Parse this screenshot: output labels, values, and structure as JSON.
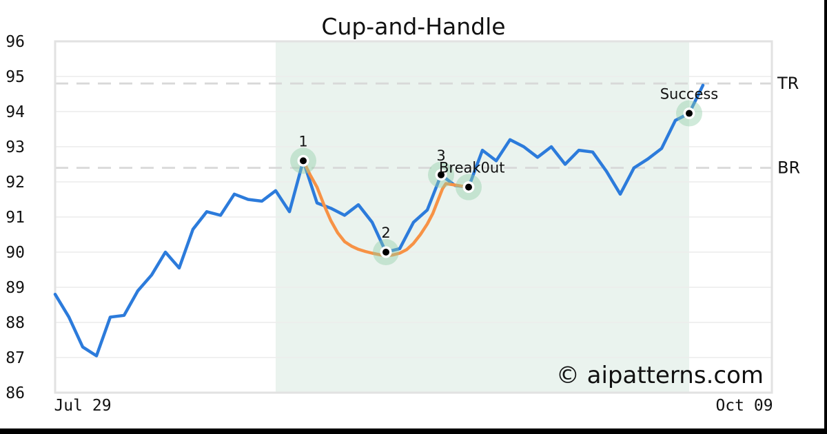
{
  "watermark": {
    "text": "© aipatterns.com",
    "color": "#c5c8ef"
  },
  "colors": {
    "line_blue": "#2c7bdb",
    "cup_orange": "#f79245",
    "marker_halo": "rgba(144,205,168,0.42)",
    "marker_dot": "#000000",
    "marker_ring": "#ffffff",
    "shaded_region": "#eaf3ee",
    "grid": "#ececec",
    "frame": "#e2e2e2",
    "dashed": "#d8d8d8",
    "text": "#111111",
    "border_bar": "#000000"
  },
  "chart_data": {
    "type": "line",
    "title": "Cup-and-Handle",
    "x_axis": {
      "tick_labels": [
        "Jul 29",
        "Oct 09"
      ]
    },
    "y_axis": {
      "ticks": [
        86,
        87,
        88,
        89,
        90,
        91,
        92,
        93,
        94,
        95,
        96
      ],
      "ylim": [
        86,
        96
      ]
    },
    "grid": "horizontal-only",
    "legend": "none",
    "series": [
      {
        "name": "price",
        "color": "#2c7bdb",
        "values": [
          88.8,
          88.15,
          87.3,
          87.05,
          88.15,
          88.2,
          88.9,
          89.35,
          90.0,
          89.55,
          90.65,
          91.15,
          91.05,
          91.65,
          91.5,
          91.45,
          91.75,
          91.15,
          92.6,
          91.4,
          91.25,
          91.05,
          91.35,
          90.85,
          90.0,
          90.1,
          90.85,
          91.2,
          92.2,
          91.9,
          91.85,
          92.9,
          92.6,
          93.2,
          93.0,
          92.7,
          93.0,
          92.5,
          92.9,
          92.85,
          92.3,
          91.65,
          92.4,
          92.65,
          92.95,
          93.75,
          93.95,
          94.75
        ]
      },
      {
        "name": "cup-outline",
        "color": "#f79245",
        "points": [
          [
            18,
            92.6
          ],
          [
            18.5,
            92.2
          ],
          [
            19,
            91.85
          ],
          [
            19.5,
            91.35
          ],
          [
            20,
            90.9
          ],
          [
            20.5,
            90.55
          ],
          [
            21,
            90.3
          ],
          [
            21.5,
            90.17
          ],
          [
            22,
            90.08
          ],
          [
            22.5,
            90.02
          ],
          [
            23,
            89.97
          ],
          [
            23.5,
            89.93
          ],
          [
            24,
            89.9
          ],
          [
            24.5,
            89.92
          ],
          [
            25,
            89.97
          ],
          [
            25.5,
            90.07
          ],
          [
            26,
            90.25
          ],
          [
            26.5,
            90.5
          ],
          [
            27,
            90.8
          ],
          [
            27.4,
            91.1
          ],
          [
            27.8,
            91.5
          ],
          [
            28.1,
            91.8
          ],
          [
            28.35,
            91.95
          ],
          [
            30,
            91.85
          ]
        ]
      }
    ],
    "hlines": [
      {
        "label": "TR",
        "value": 94.8
      },
      {
        "label": "BR",
        "value": 92.4
      }
    ],
    "shaded_region": {
      "start_index": 16,
      "end_index": 46,
      "color": "#eaf3ee"
    },
    "annotations": [
      {
        "index": 18,
        "label": "1",
        "value": 92.6
      },
      {
        "index": 24,
        "label": "2",
        "value": 90.0
      },
      {
        "index": 28,
        "label": "3",
        "value": 92.2
      },
      {
        "index": 30,
        "label": "Break0ut",
        "value": 91.85,
        "anchor": "start",
        "dx": -43
      },
      {
        "index": 46,
        "label": "Success",
        "value": 93.95
      }
    ]
  }
}
